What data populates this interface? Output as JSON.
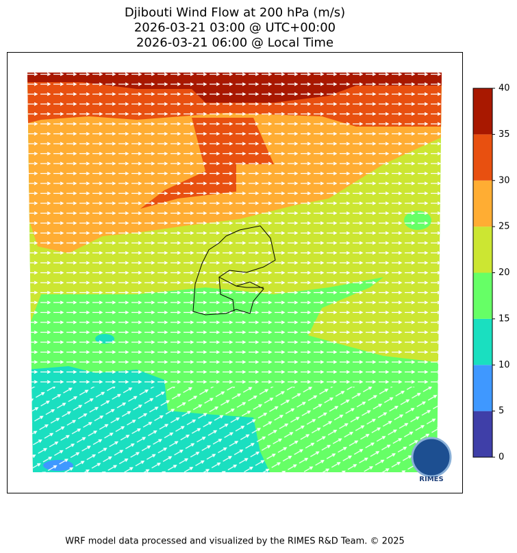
{
  "chart_data": {
    "type": "contourf-map",
    "title": "Djibouti Wind Flow at 200 hPa (m/s)",
    "subtitles": [
      "2026-03-21 03:00 @ UTC+00:00",
      "2026-03-21 06:00 @ Local Time"
    ],
    "colorbar": {
      "levels": [
        0,
        5,
        10,
        15,
        20,
        25,
        30,
        35,
        40
      ],
      "colors": [
        "#3f3fa8",
        "#3f98ff",
        "#1adfc0",
        "#66ff66",
        "#cce632",
        "#ffad33",
        "#e85010",
        "#a81800"
      ],
      "ylim": [
        0,
        40
      ],
      "yticks": [
        0,
        5,
        10,
        15,
        20,
        25,
        30,
        35,
        40
      ]
    }
  },
  "logo_text": "RIMES",
  "footer": "WRF model data processed and visualized by the RIMES R&D Team. © 2025"
}
